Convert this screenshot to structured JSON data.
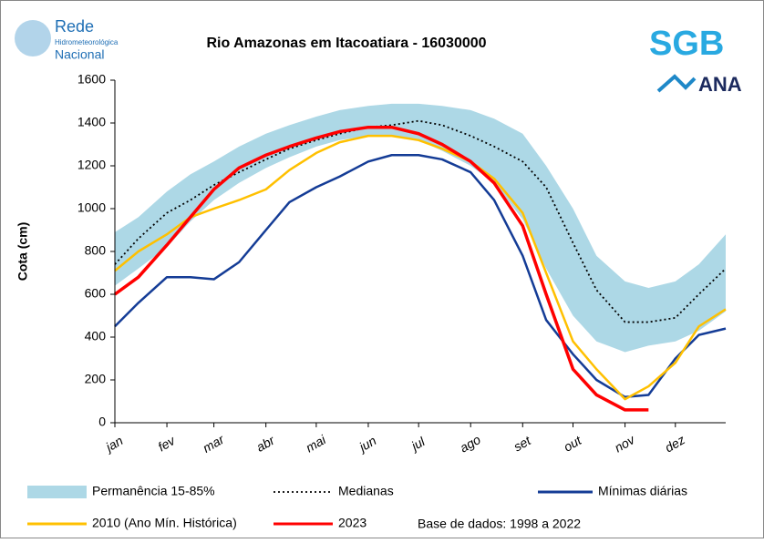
{
  "logos": {
    "rede": [
      "Rede",
      "Hidrometeorológica",
      "Nacional"
    ],
    "sgb": "SGB",
    "ana": "ANA"
  },
  "chart_data": {
    "type": "line",
    "title": "Rio Amazonas em Itacoatiara - 16030000",
    "y_label": "Cota (cm)",
    "note": "Base de dados: 1998 a 2022",
    "x": [
      1,
      15,
      32,
      46,
      60,
      75,
      91,
      105,
      121,
      135,
      152,
      166,
      182,
      196,
      213,
      227,
      244,
      258,
      274,
      288,
      305,
      319,
      335,
      349,
      365
    ],
    "xlim": [
      1,
      365
    ],
    "xticks": [
      {
        "value": 1,
        "label": "jan"
      },
      {
        "value": 32,
        "label": "fev"
      },
      {
        "value": 60,
        "label": "mar"
      },
      {
        "value": 91,
        "label": "abr"
      },
      {
        "value": 121,
        "label": "mai"
      },
      {
        "value": 152,
        "label": "jun"
      },
      {
        "value": 182,
        "label": "jul"
      },
      {
        "value": 213,
        "label": "ago"
      },
      {
        "value": 244,
        "label": "set"
      },
      {
        "value": 274,
        "label": "out"
      },
      {
        "value": 305,
        "label": "nov"
      },
      {
        "value": 335,
        "label": "dez"
      }
    ],
    "ylim": [
      0,
      1600
    ],
    "yticks": [
      0,
      200,
      400,
      600,
      800,
      1000,
      1200,
      1400,
      1600
    ],
    "series": [
      {
        "name": "Permanência 15-85%",
        "style": "band",
        "color": "#add8e6",
        "high": [
          890,
          960,
          1080,
          1160,
          1220,
          1290,
          1350,
          1390,
          1430,
          1460,
          1480,
          1490,
          1490,
          1480,
          1460,
          1420,
          1350,
          1200,
          1000,
          780,
          660,
          630,
          660,
          740,
          880
        ],
        "low": [
          640,
          720,
          820,
          940,
          1040,
          1120,
          1190,
          1240,
          1290,
          1320,
          1340,
          1340,
          1320,
          1270,
          1200,
          1120,
          950,
          720,
          500,
          380,
          330,
          360,
          380,
          430,
          520
        ]
      },
      {
        "name": "Medianas",
        "style": "dotted",
        "color": "#000000",
        "values": [
          740,
          860,
          980,
          1040,
          1110,
          1170,
          1230,
          1280,
          1320,
          1350,
          1380,
          1390,
          1410,
          1390,
          1340,
          1290,
          1220,
          1100,
          840,
          620,
          470,
          470,
          490,
          600,
          720
        ]
      },
      {
        "name": "Mínimas diárias",
        "style": "line",
        "color": "#143c96",
        "values": [
          450,
          560,
          680,
          680,
          670,
          750,
          900,
          1030,
          1100,
          1150,
          1220,
          1250,
          1250,
          1230,
          1170,
          1040,
          780,
          480,
          320,
          200,
          120,
          130,
          300,
          410,
          440
        ]
      },
      {
        "name": "2010 (Ano Mín. Histórica)",
        "style": "line",
        "color": "#ffc000",
        "values": [
          710,
          800,
          880,
          960,
          1000,
          1040,
          1090,
          1180,
          1260,
          1310,
          1340,
          1340,
          1320,
          1280,
          1220,
          1140,
          980,
          700,
          380,
          250,
          110,
          170,
          280,
          450,
          530
        ]
      },
      {
        "name": "2023",
        "style": "line",
        "color": "#ff0000",
        "values": [
          600,
          680,
          830,
          960,
          1090,
          1190,
          1250,
          1290,
          1330,
          1360,
          1380,
          1380,
          1350,
          1300,
          1220,
          1120,
          920,
          600,
          250,
          130,
          60,
          60,
          null,
          null,
          null
        ]
      }
    ]
  }
}
